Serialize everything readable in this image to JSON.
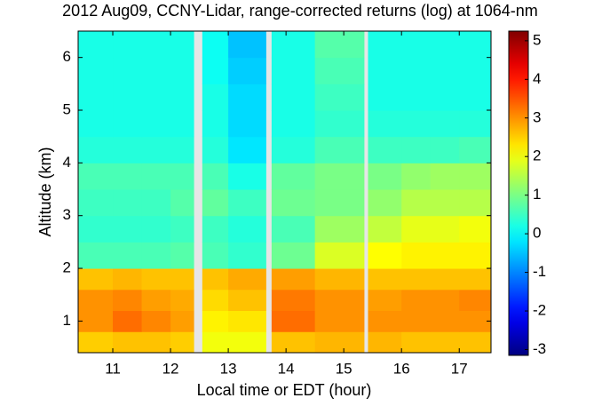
{
  "chart_data": {
    "type": "heatmap",
    "title": "2012 Aug09, CCNY-Lidar, range-corrected returns (log) at 1064-nm",
    "x_label": "Local time or EDT (hour)",
    "y_label": "Altitude (km)",
    "x_edges": [
      10.4,
      11,
      11.5,
      12,
      12.4,
      12.55,
      13,
      13.65,
      13.75,
      14.5,
      15.35,
      15.42,
      16,
      16.5,
      17,
      17.55
    ],
    "y_edges": [
      0.4,
      0.8,
      1.2,
      1.6,
      2.0,
      2.5,
      3,
      3.5,
      4,
      4.5,
      5,
      5.5,
      6,
      6.5
    ],
    "z": [
      [
        2.5,
        2.6,
        2.6,
        2.5,
        null,
        2.0,
        2.0,
        null,
        2.6,
        2.7,
        null,
        2.7,
        2.6,
        2.6,
        2.6
      ],
      [
        3.0,
        3.3,
        3.1,
        2.9,
        null,
        2.2,
        2.3,
        null,
        3.3,
        3.0,
        null,
        3.0,
        3.0,
        3.0,
        3.0
      ],
      [
        3.0,
        3.1,
        2.9,
        2.8,
        null,
        2.4,
        2.6,
        null,
        3.2,
        3.0,
        null,
        2.9,
        3.0,
        3.0,
        3.1
      ],
      [
        2.6,
        2.7,
        2.6,
        2.6,
        null,
        2.6,
        2.8,
        null,
        2.9,
        2.7,
        null,
        2.6,
        2.6,
        2.6,
        2.6
      ],
      [
        0.6,
        0.6,
        0.6,
        0.7,
        null,
        0.6,
        0.4,
        null,
        0.9,
        1.8,
        null,
        2.1,
        2.2,
        2.2,
        2.2
      ],
      [
        0.4,
        0.4,
        0.4,
        0.5,
        null,
        0.5,
        0.3,
        null,
        0.6,
        1.3,
        null,
        1.6,
        1.9,
        1.9,
        2.0
      ],
      [
        0.5,
        0.5,
        0.5,
        0.7,
        null,
        0.8,
        0.5,
        null,
        0.9,
        1.0,
        null,
        1.2,
        1.5,
        1.5,
        1.5
      ],
      [
        0.6,
        0.6,
        0.6,
        0.6,
        null,
        0.6,
        0.2,
        null,
        0.8,
        1.0,
        null,
        1.0,
        1.2,
        1.3,
        1.3
      ],
      [
        0.3,
        0.3,
        0.3,
        0.3,
        null,
        0.3,
        -0.2,
        null,
        0.3,
        0.6,
        null,
        0.5,
        0.5,
        0.5,
        0.6
      ],
      [
        0.2,
        0.2,
        0.2,
        0.2,
        null,
        0.2,
        -0.3,
        null,
        0.2,
        0.4,
        null,
        0.3,
        0.3,
        0.3,
        0.3
      ],
      [
        0.2,
        0.2,
        0.2,
        0.2,
        null,
        0.2,
        -0.3,
        null,
        0.2,
        0.5,
        null,
        0.2,
        0.2,
        0.2,
        0.2
      ],
      [
        0.2,
        0.2,
        0.2,
        0.2,
        null,
        0.1,
        -0.4,
        null,
        0.2,
        0.6,
        null,
        0.2,
        0.2,
        0.2,
        0.2
      ],
      [
        0.2,
        0.2,
        0.2,
        0.2,
        null,
        0.1,
        -0.5,
        null,
        0.2,
        0.7,
        null,
        0.2,
        0.2,
        0.2,
        0.2
      ]
    ],
    "colormap": "jet",
    "missing_color": "#e6e6e6",
    "xlim": [
      10.4,
      17.55
    ],
    "xticks": [
      11,
      12,
      13,
      14,
      15,
      16,
      17
    ],
    "ylim": [
      0.4,
      6.5
    ],
    "yticks": [
      1,
      2,
      3,
      4,
      5,
      6
    ],
    "zlim": [
      -3.15,
      5.25
    ],
    "zticks": [
      -3,
      -2,
      -1,
      0,
      1,
      2,
      3,
      4,
      5
    ]
  }
}
